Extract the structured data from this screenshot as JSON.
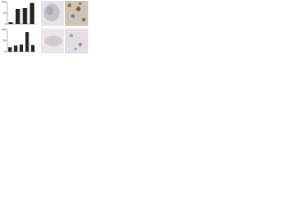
{
  "chart_data": [
    {
      "type": "bar",
      "categories": [
        null,
        null,
        null,
        null
      ],
      "values": [
        8,
        68,
        72,
        95
      ],
      "color": "#222222",
      "ylim": [
        0,
        100
      ],
      "yticks": [
        0,
        50,
        100
      ]
    },
    {
      "type": "bar",
      "categories": [
        null,
        null,
        null,
        null,
        null
      ],
      "values": [
        20,
        28,
        32,
        88,
        30
      ],
      "color": "#222222",
      "ylim": [
        0,
        100
      ],
      "yticks": [
        0,
        50,
        100
      ]
    }
  ]
}
